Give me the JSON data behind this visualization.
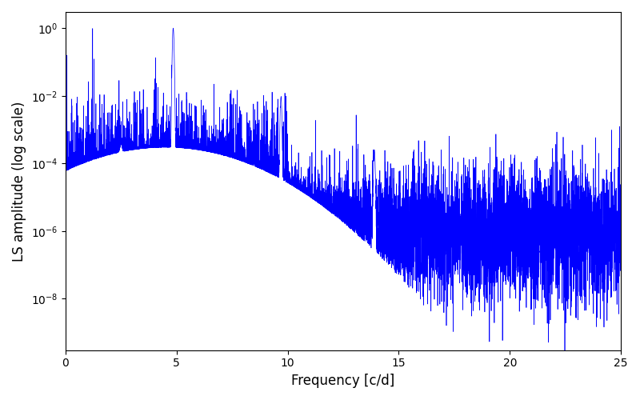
{
  "title": "",
  "xlabel": "Frequency [c/d]",
  "ylabel": "LS amplitude (log scale)",
  "xmin": 0,
  "xmax": 25,
  "ymin": 3e-10,
  "ymax": 3.0,
  "line_color": "#0000FF",
  "line_width": 0.5,
  "background_color": "#ffffff",
  "seed": 12345,
  "n_points": 8000,
  "peak1_freq": 4.85,
  "peak1_amp": 1.0,
  "peak2_freq": 9.75,
  "peak2_amp": 0.009,
  "peak3_freq": 13.9,
  "peak3_amp": 0.00025,
  "peak4_freq": 2.5,
  "peak4_amp": 0.00015,
  "base_noise_low": 2e-05,
  "base_noise_high": 8e-07,
  "noise_spread_low": 1.2,
  "noise_spread_high": 1.0
}
